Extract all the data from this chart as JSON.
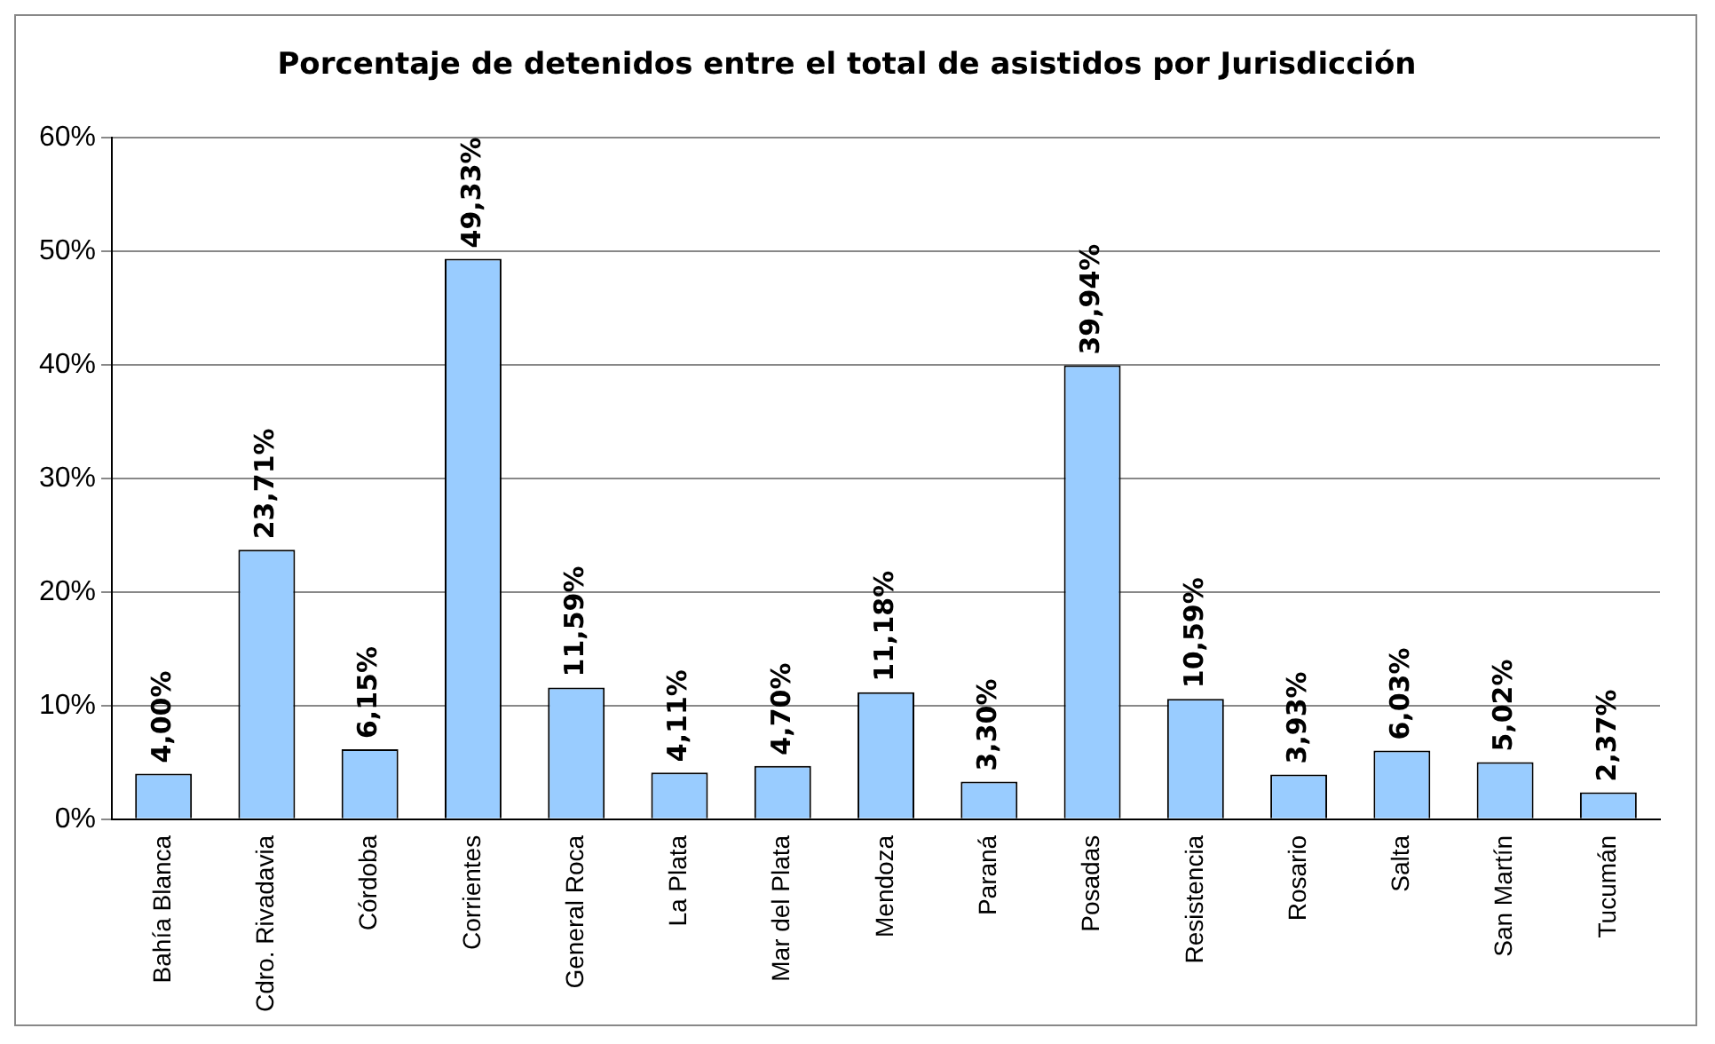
{
  "chart_data": {
    "type": "bar",
    "title": "Porcentaje de detenidos entre el total de asistidos por Jurisdicción",
    "categories": [
      "Bahía Blanca",
      "Cdro. Rivadavia",
      "Córdoba",
      "Corrientes",
      "General Roca",
      "La Plata",
      "Mar del Plata",
      "Mendoza",
      "Paraná",
      "Posadas",
      "Resistencia",
      "Rosario",
      "Salta",
      "San Martín",
      "Tucumán"
    ],
    "values": [
      4.0,
      23.71,
      6.15,
      49.33,
      11.59,
      4.11,
      4.7,
      11.18,
      3.3,
      39.94,
      10.59,
      3.93,
      6.03,
      5.02,
      2.37
    ],
    "value_labels": [
      "4,00%",
      "23,71%",
      "6,15%",
      "49,33%",
      "11,59%",
      "4,11%",
      "4,70%",
      "11,18%",
      "3,30%",
      "39,94%",
      "10,59%",
      "3,93%",
      "6,03%",
      "5,02%",
      "2,37%"
    ],
    "color": "#99ccff",
    "ylim": [
      0,
      60
    ],
    "yticks": [
      {
        "value": 0,
        "label": "0%"
      },
      {
        "value": 10,
        "label": "10%"
      },
      {
        "value": 20,
        "label": "20%"
      },
      {
        "value": 30,
        "label": "30%"
      },
      {
        "value": 40,
        "label": "40%"
      },
      {
        "value": 50,
        "label": "50%"
      },
      {
        "value": 60,
        "label": "60%"
      }
    ],
    "grid": "y",
    "legend": false
  }
}
